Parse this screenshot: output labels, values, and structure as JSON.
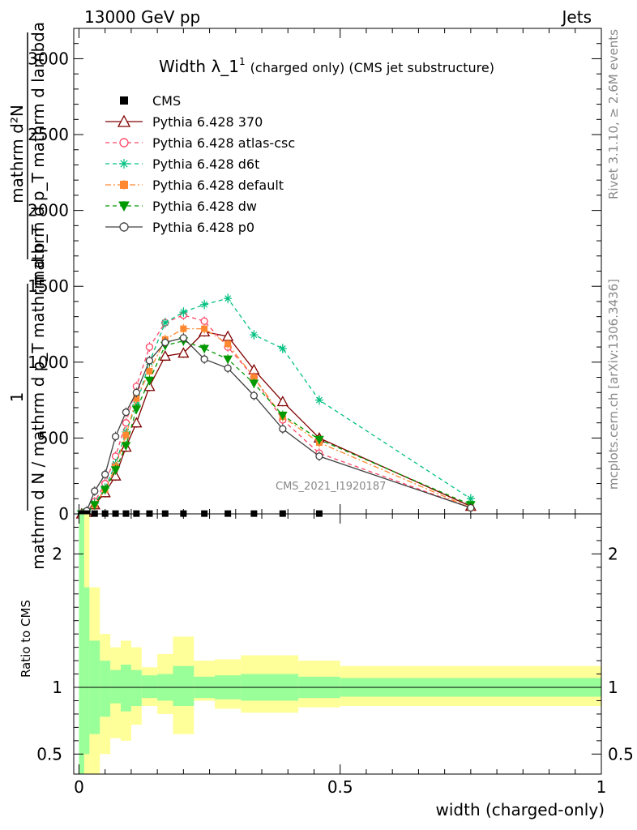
{
  "header": {
    "left": "13000 GeV pp",
    "right": "Jets"
  },
  "side_labels": {
    "rivet": "Rivet 3.1.10, ≥ 2.6M events",
    "mcplots": "mcplots.cern.ch [arXiv:1306.3436]"
  },
  "watermark": "CMS_2021_I1920187",
  "chart_data": [
    {
      "type": "line",
      "title": "Width λ_1",
      "title_superscript": "1",
      "title_suffix": "(charged only) (CMS jet substructure)",
      "ylabel_fraction": {
        "numerator": "mathrm d²N",
        "denominator": "mathrm d p_T mathrm d lambda",
        "prefix_numerator": "1",
        "prefix_denominator": "mathrm d N / mathrm d p_T mathrm d p_T"
      },
      "xlim": [
        -0.01,
        1.0
      ],
      "ylim": [
        0,
        3200
      ],
      "y_ticks": [
        0,
        500,
        1000,
        1500,
        2000,
        2500,
        3000
      ],
      "y_tick_labels": [
        "0",
        "500",
        "1000",
        "1500",
        "2000",
        "2500",
        "3000"
      ],
      "x": [
        0.005,
        0.015,
        0.03,
        0.05,
        0.07,
        0.09,
        0.11,
        0.135,
        0.165,
        0.2,
        0.24,
        0.285,
        0.335,
        0.39,
        0.46,
        0.75
      ],
      "data": {
        "name": "CMS",
        "x": [
          0.005,
          0.015,
          0.03,
          0.05,
          0.07,
          0.09,
          0.11,
          0.135,
          0.165,
          0.2,
          0.24,
          0.285,
          0.335,
          0.39,
          0.46
        ],
        "values": [
          0,
          2,
          2,
          2,
          2,
          2,
          2,
          2,
          2,
          2,
          2,
          2,
          2,
          2,
          2
        ]
      },
      "series": [
        {
          "name": "Pythia 6.428 370",
          "color": "#800000",
          "marker": "triangle-open",
          "dash": "solid",
          "values": [
            0,
            10,
            60,
            140,
            250,
            440,
            600,
            840,
            1040,
            1060,
            1200,
            1170,
            950,
            740,
            500,
            50
          ]
        },
        {
          "name": "Pythia 6.428 atlas-csc",
          "color": "#ff4466",
          "marker": "circle-open",
          "dash": "dashed",
          "values": [
            0,
            15,
            80,
            200,
            380,
            600,
            840,
            1100,
            1260,
            1310,
            1270,
            1100,
            900,
            620,
            400,
            40
          ]
        },
        {
          "name": "Pythia 6.428 d6t",
          "color": "#00c080",
          "marker": "asterisk",
          "dash": "dashed",
          "values": [
            0,
            12,
            70,
            170,
            330,
            540,
            720,
            1000,
            1260,
            1330,
            1380,
            1420,
            1180,
            1090,
            750,
            100
          ]
        },
        {
          "name": "Pythia 6.428 default",
          "color": "#ff8830",
          "marker": "square",
          "dash": "dashdot",
          "values": [
            0,
            10,
            60,
            160,
            310,
            520,
            760,
            940,
            1150,
            1220,
            1220,
            1120,
            900,
            640,
            470,
            40
          ]
        },
        {
          "name": "Pythia 6.428 dw",
          "color": "#009900",
          "marker": "triangle-down",
          "dash": "dashed",
          "values": [
            0,
            10,
            60,
            160,
            290,
            450,
            690,
            880,
            1110,
            1140,
            1090,
            1020,
            860,
            650,
            490,
            60
          ]
        },
        {
          "name": "Pythia 6.428 p0",
          "color": "#404040",
          "marker": "circle-open",
          "dash": "solid",
          "values": [
            0,
            20,
            150,
            260,
            510,
            670,
            800,
            1010,
            1130,
            1160,
            1020,
            960,
            780,
            560,
            380,
            40
          ]
        }
      ]
    },
    {
      "type": "area",
      "ylabel": "Ratio to CMS",
      "xlabel": "width (charged-only)",
      "xlim": [
        -0.01,
        1.0
      ],
      "ylim": [
        0.35,
        2.3
      ],
      "x_ticks": [
        0,
        0.5,
        1
      ],
      "x_tick_labels": [
        "0",
        "0.5",
        "1"
      ],
      "y_ticks": [
        0.5,
        1,
        2
      ],
      "y_tick_labels": [
        "0.5",
        "1",
        "2"
      ],
      "bin_edges": [
        0,
        0.01,
        0.02,
        0.04,
        0.06,
        0.08,
        0.1,
        0.12,
        0.15,
        0.18,
        0.22,
        0.26,
        0.31,
        0.36,
        0.42,
        0.5,
        1.0
      ],
      "green_upper": [
        2.3,
        1.75,
        1.35,
        1.2,
        1.13,
        1.17,
        1.13,
        1.09,
        1.1,
        1.16,
        1.08,
        1.09,
        1.1,
        1.1,
        1.08,
        1.07
      ],
      "green_lower": [
        0.35,
        0.5,
        0.65,
        0.78,
        0.88,
        0.82,
        0.86,
        0.92,
        0.9,
        0.86,
        0.92,
        0.91,
        0.9,
        0.9,
        0.92,
        0.93
      ],
      "yellow_upper": [
        2.3,
        2.3,
        1.75,
        1.4,
        1.3,
        1.35,
        1.3,
        1.15,
        1.25,
        1.38,
        1.2,
        1.21,
        1.24,
        1.24,
        1.2,
        1.16
      ],
      "yellow_lower": [
        0.35,
        0.35,
        0.35,
        0.5,
        0.62,
        0.6,
        0.72,
        0.86,
        0.8,
        0.65,
        0.9,
        0.84,
        0.81,
        0.81,
        0.85,
        0.86
      ]
    }
  ]
}
